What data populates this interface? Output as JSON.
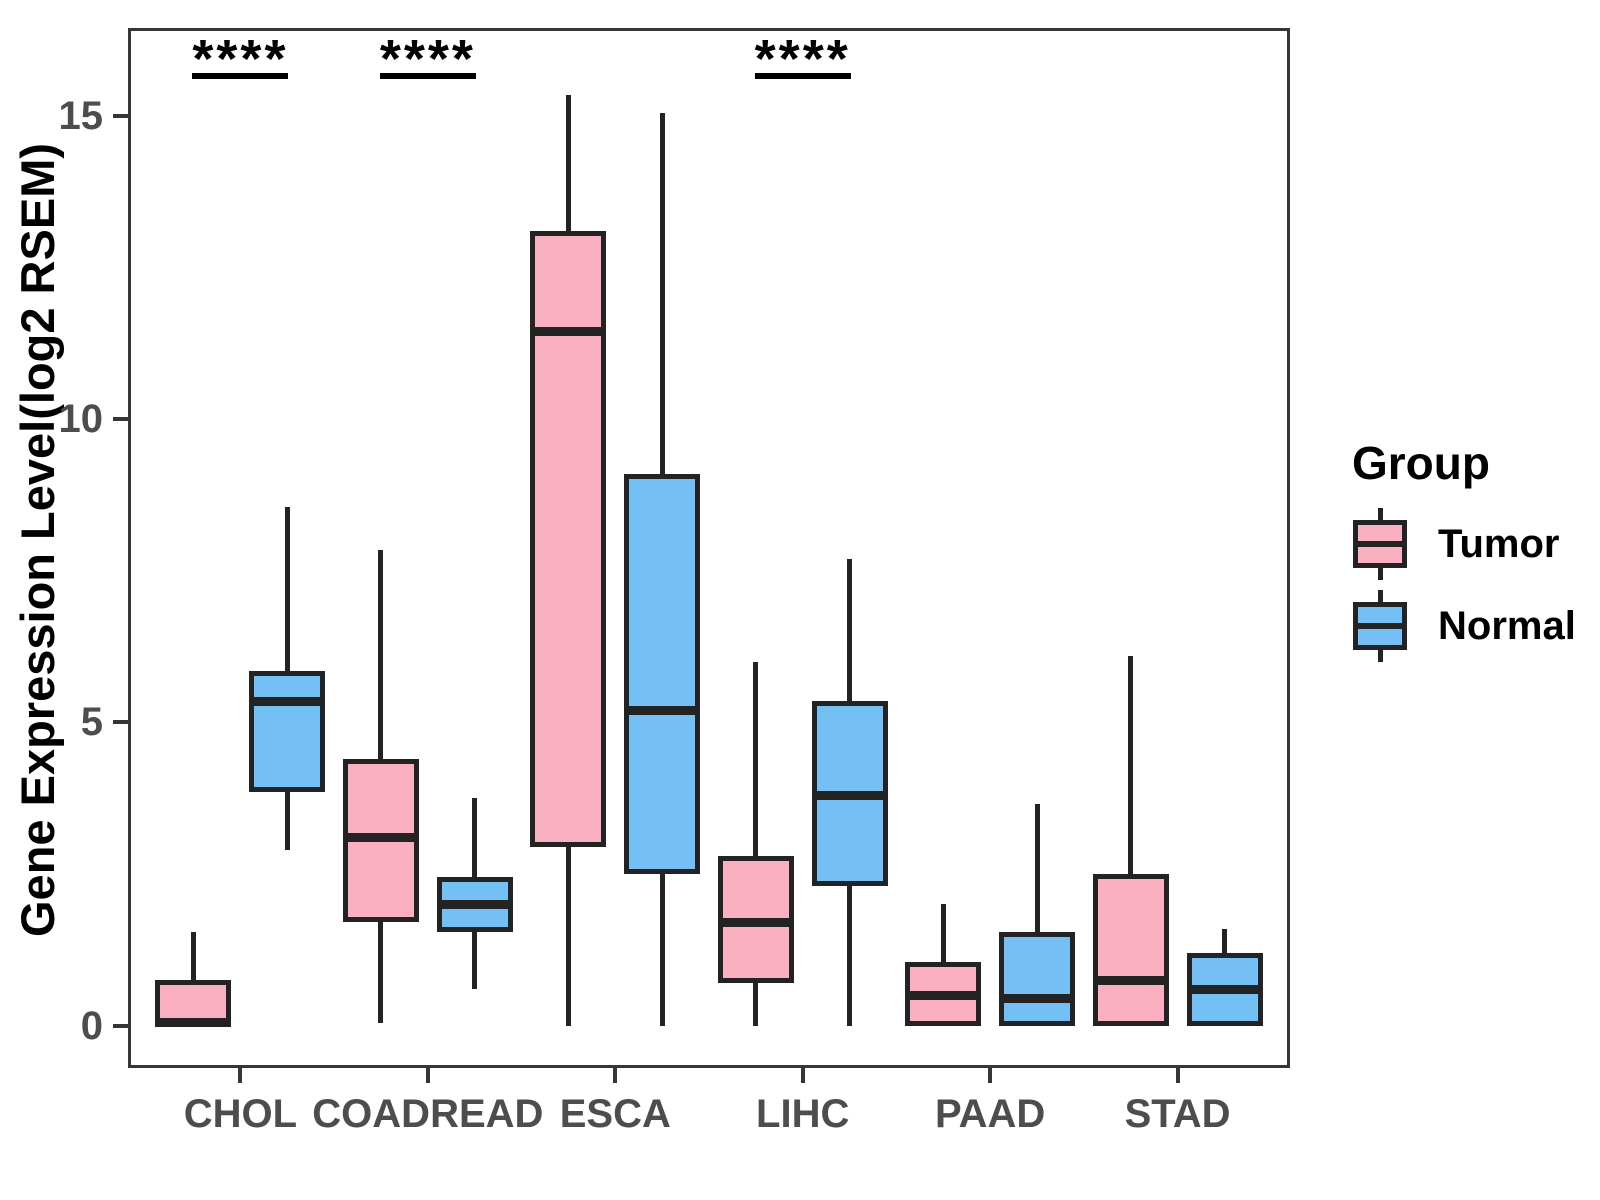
{
  "chart_data": {
    "type": "boxplot",
    "title": "",
    "xlabel": "",
    "ylabel": "Gene Expression Level(log2 RSEM)",
    "categories": [
      "CHOL",
      "COADREAD",
      "ESCA",
      "LIHC",
      "PAAD",
      "STAD"
    ],
    "y_ticks": [
      0,
      5,
      10,
      15
    ],
    "ylim": [
      -0.7,
      16.45
    ],
    "grid": false,
    "legend_position": "right",
    "series": [
      {
        "name": "Tumor",
        "color": "#FAB0C0",
        "boxes": [
          {
            "category": "CHOL",
            "min": 0,
            "q1": 0,
            "median": 0.05,
            "q3": 0.75,
            "max": 1.55
          },
          {
            "category": "COADREAD",
            "min": 0.05,
            "q1": 1.7,
            "median": 3.1,
            "q3": 4.4,
            "max": 7.85
          },
          {
            "category": "ESCA",
            "min": 0,
            "q1": 2.95,
            "median": 11.45,
            "q3": 13.1,
            "max": 15.35
          },
          {
            "category": "LIHC",
            "min": 0,
            "q1": 0.7,
            "median": 1.7,
            "q3": 2.8,
            "max": 6.0
          },
          {
            "category": "PAAD",
            "min": 0,
            "q1": 0,
            "median": 0.5,
            "q3": 1.05,
            "max": 2.0
          },
          {
            "category": "STAD",
            "min": 0,
            "q1": 0,
            "median": 0.75,
            "q3": 2.5,
            "max": 6.1
          }
        ]
      },
      {
        "name": "Normal",
        "color": "#74BFF4",
        "boxes": [
          {
            "category": "CHOL",
            "min": 2.9,
            "q1": 3.85,
            "median": 5.35,
            "q3": 5.85,
            "max": 8.55
          },
          {
            "category": "COADREAD",
            "min": 0.6,
            "q1": 1.55,
            "median": 2.0,
            "q3": 2.45,
            "max": 3.75
          },
          {
            "category": "ESCA",
            "min": 0,
            "q1": 2.5,
            "median": 5.2,
            "q3": 9.1,
            "max": 15.05
          },
          {
            "category": "LIHC",
            "min": 0,
            "q1": 2.3,
            "median": 3.8,
            "q3": 5.35,
            "max": 7.7
          },
          {
            "category": "PAAD",
            "min": 0,
            "q1": 0,
            "median": 0.45,
            "q3": 1.55,
            "max": 3.65
          },
          {
            "category": "STAD",
            "min": 0,
            "q1": 0,
            "median": 0.6,
            "q3": 1.2,
            "max": 1.6
          }
        ]
      }
    ],
    "significance": [
      {
        "category": "CHOL",
        "label": "****"
      },
      {
        "category": "COADREAD",
        "label": "****"
      },
      {
        "category": "LIHC",
        "label": "****"
      }
    ]
  },
  "legend": {
    "title": "Group",
    "entries": [
      {
        "label": "Tumor",
        "color": "#FAB0C0"
      },
      {
        "label": "Normal",
        "color": "#74BFF4"
      }
    ]
  },
  "colors": {
    "box_line": "#232323",
    "axis": "#363636",
    "tick_text": "#4d4d4d",
    "annotation": "#000000"
  }
}
